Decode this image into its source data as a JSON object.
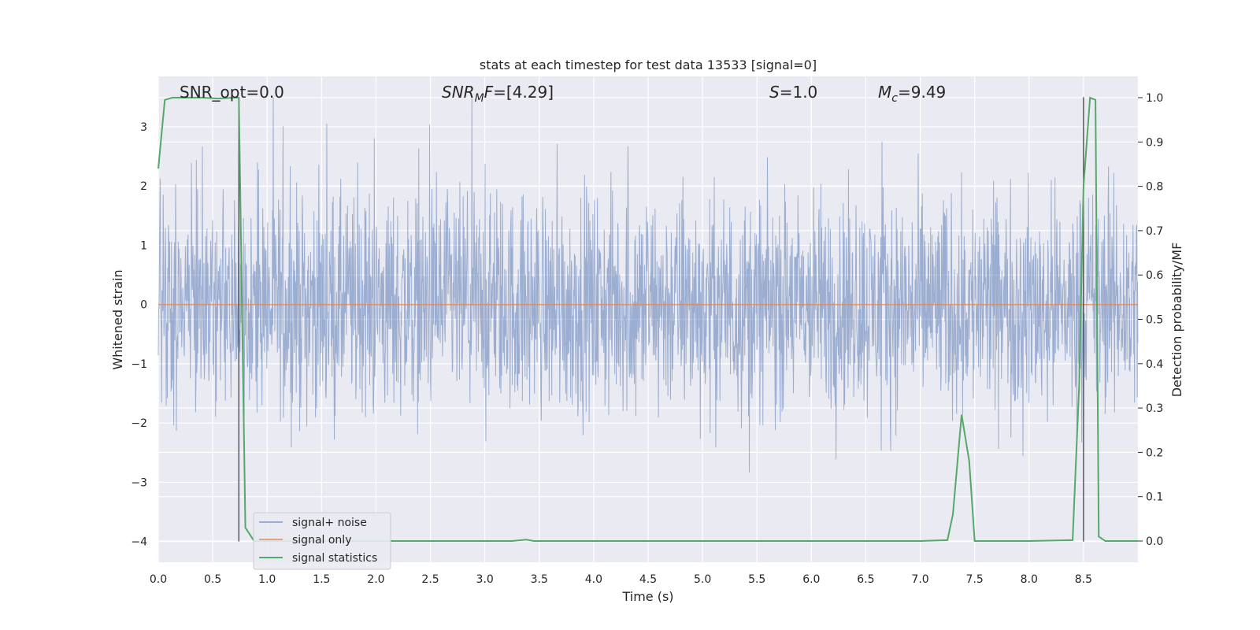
{
  "chart_data": {
    "type": "line",
    "title": "stats at each timestep for test data 13533 [signal=0]",
    "xlabel": "Time (s)",
    "ylabel_left": "Whitened strain",
    "ylabel_right": "Detection probability/MF",
    "xlim": [
      0,
      9
    ],
    "ylim_left": [
      -4.35,
      3.85
    ],
    "ylim_right": [
      -0.048,
      1.048
    ],
    "x_ticks": [
      "0.0",
      "0.5",
      "1.0",
      "1.5",
      "2.0",
      "2.5",
      "3.0",
      "3.5",
      "4.0",
      "4.5",
      "5.0",
      "5.5",
      "6.0",
      "6.5",
      "7.0",
      "7.5",
      "8.0",
      "8.5"
    ],
    "y_ticks_left": [
      3,
      2,
      1,
      0,
      -1,
      -2,
      -3,
      -4
    ],
    "y_ticks_right": [
      "1.0",
      "0.9",
      "0.8",
      "0.7",
      "0.6",
      "0.5",
      "0.4",
      "0.3",
      "0.2",
      "0.1",
      "0.0"
    ],
    "grid": true,
    "legend_position": "lower-left",
    "annotations": [
      {
        "id": "snr-opt",
        "prefix": "SNR_opt=",
        "value": "0.0"
      },
      {
        "id": "snr-mf",
        "main": "SNR",
        "sub": "M",
        "tail": "F=",
        "value": "[4.29]"
      },
      {
        "id": "s-stat",
        "main": "S",
        "tail": "=",
        "value": "1.0"
      },
      {
        "id": "mc",
        "main": "M",
        "sub": "c",
        "tail": "=",
        "value": "9.49"
      }
    ],
    "vlines_x": [
      0.74,
      8.5
    ],
    "vline_top": 3.5,
    "vline_bottom": -4.0,
    "series": [
      {
        "name": "signal+ noise",
        "color": "#4c72b0",
        "noise_amplitude_core": 1.2,
        "spike_max": 3.5,
        "spike_min": -3.5
      },
      {
        "name": "signal only",
        "color": "#dd8452",
        "x": [
          0,
          9
        ],
        "y": [
          0,
          0
        ]
      },
      {
        "name": "signal statistics",
        "color": "#55a868",
        "axis": "right",
        "x": [
          0.0,
          0.06,
          0.13,
          0.25,
          0.4,
          0.55,
          0.7,
          0.74,
          0.8,
          0.88,
          1.0,
          1.5,
          2.0,
          2.5,
          3.0,
          3.25,
          3.38,
          3.45,
          3.6,
          4.0,
          5.0,
          6.0,
          7.0,
          7.25,
          7.3,
          7.38,
          7.45,
          7.5,
          7.6,
          8.0,
          8.4,
          8.46,
          8.5,
          8.56,
          8.61,
          8.64,
          8.7,
          8.8,
          9.0
        ],
        "y": [
          0.84,
          0.995,
          1.0,
          1.0,
          1.0,
          0.998,
          1.0,
          1.0,
          0.03,
          0.0,
          0.0,
          0.0,
          0.0,
          0.0,
          0.0,
          0.0,
          0.003,
          0.0,
          0.0,
          0.0,
          0.0,
          0.0,
          0.0,
          0.002,
          0.06,
          0.285,
          0.18,
          0.0,
          0.0,
          0.0,
          0.002,
          0.35,
          0.8,
          1.0,
          0.995,
          0.01,
          0.0,
          0.0,
          0.0
        ]
      }
    ]
  }
}
